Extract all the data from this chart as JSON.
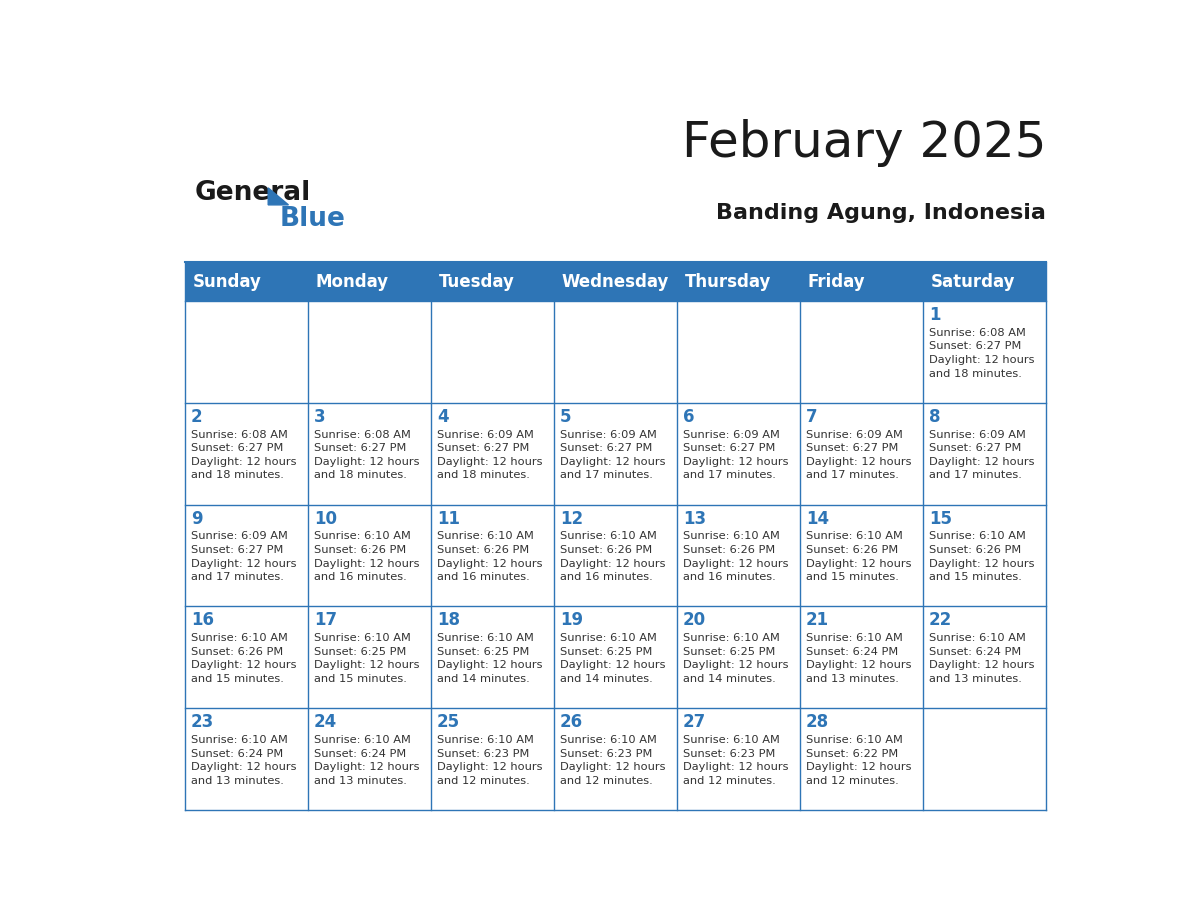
{
  "title": "February 2025",
  "subtitle": "Banding Agung, Indonesia",
  "header_bg": "#2E75B6",
  "header_text_color": "#FFFFFF",
  "cell_bg": "#FFFFFF",
  "border_color": "#2E75B6",
  "day_headers": [
    "Sunday",
    "Monday",
    "Tuesday",
    "Wednesday",
    "Thursday",
    "Friday",
    "Saturday"
  ],
  "title_color": "#1a1a1a",
  "subtitle_color": "#1a1a1a",
  "day_number_color": "#2E75B6",
  "cell_text_color": "#333333",
  "logo_text_general": "General",
  "logo_text_blue": "Blue",
  "logo_color_general": "#1a1a1a",
  "logo_color_blue": "#2E75B6",
  "weeks": [
    [
      {
        "day": null,
        "text": ""
      },
      {
        "day": null,
        "text": ""
      },
      {
        "day": null,
        "text": ""
      },
      {
        "day": null,
        "text": ""
      },
      {
        "day": null,
        "text": ""
      },
      {
        "day": null,
        "text": ""
      },
      {
        "day": 1,
        "text": "Sunrise: 6:08 AM\nSunset: 6:27 PM\nDaylight: 12 hours\nand 18 minutes."
      }
    ],
    [
      {
        "day": 2,
        "text": "Sunrise: 6:08 AM\nSunset: 6:27 PM\nDaylight: 12 hours\nand 18 minutes."
      },
      {
        "day": 3,
        "text": "Sunrise: 6:08 AM\nSunset: 6:27 PM\nDaylight: 12 hours\nand 18 minutes."
      },
      {
        "day": 4,
        "text": "Sunrise: 6:09 AM\nSunset: 6:27 PM\nDaylight: 12 hours\nand 18 minutes."
      },
      {
        "day": 5,
        "text": "Sunrise: 6:09 AM\nSunset: 6:27 PM\nDaylight: 12 hours\nand 17 minutes."
      },
      {
        "day": 6,
        "text": "Sunrise: 6:09 AM\nSunset: 6:27 PM\nDaylight: 12 hours\nand 17 minutes."
      },
      {
        "day": 7,
        "text": "Sunrise: 6:09 AM\nSunset: 6:27 PM\nDaylight: 12 hours\nand 17 minutes."
      },
      {
        "day": 8,
        "text": "Sunrise: 6:09 AM\nSunset: 6:27 PM\nDaylight: 12 hours\nand 17 minutes."
      }
    ],
    [
      {
        "day": 9,
        "text": "Sunrise: 6:09 AM\nSunset: 6:27 PM\nDaylight: 12 hours\nand 17 minutes."
      },
      {
        "day": 10,
        "text": "Sunrise: 6:10 AM\nSunset: 6:26 PM\nDaylight: 12 hours\nand 16 minutes."
      },
      {
        "day": 11,
        "text": "Sunrise: 6:10 AM\nSunset: 6:26 PM\nDaylight: 12 hours\nand 16 minutes."
      },
      {
        "day": 12,
        "text": "Sunrise: 6:10 AM\nSunset: 6:26 PM\nDaylight: 12 hours\nand 16 minutes."
      },
      {
        "day": 13,
        "text": "Sunrise: 6:10 AM\nSunset: 6:26 PM\nDaylight: 12 hours\nand 16 minutes."
      },
      {
        "day": 14,
        "text": "Sunrise: 6:10 AM\nSunset: 6:26 PM\nDaylight: 12 hours\nand 15 minutes."
      },
      {
        "day": 15,
        "text": "Sunrise: 6:10 AM\nSunset: 6:26 PM\nDaylight: 12 hours\nand 15 minutes."
      }
    ],
    [
      {
        "day": 16,
        "text": "Sunrise: 6:10 AM\nSunset: 6:26 PM\nDaylight: 12 hours\nand 15 minutes."
      },
      {
        "day": 17,
        "text": "Sunrise: 6:10 AM\nSunset: 6:25 PM\nDaylight: 12 hours\nand 15 minutes."
      },
      {
        "day": 18,
        "text": "Sunrise: 6:10 AM\nSunset: 6:25 PM\nDaylight: 12 hours\nand 14 minutes."
      },
      {
        "day": 19,
        "text": "Sunrise: 6:10 AM\nSunset: 6:25 PM\nDaylight: 12 hours\nand 14 minutes."
      },
      {
        "day": 20,
        "text": "Sunrise: 6:10 AM\nSunset: 6:25 PM\nDaylight: 12 hours\nand 14 minutes."
      },
      {
        "day": 21,
        "text": "Sunrise: 6:10 AM\nSunset: 6:24 PM\nDaylight: 12 hours\nand 13 minutes."
      },
      {
        "day": 22,
        "text": "Sunrise: 6:10 AM\nSunset: 6:24 PM\nDaylight: 12 hours\nand 13 minutes."
      }
    ],
    [
      {
        "day": 23,
        "text": "Sunrise: 6:10 AM\nSunset: 6:24 PM\nDaylight: 12 hours\nand 13 minutes."
      },
      {
        "day": 24,
        "text": "Sunrise: 6:10 AM\nSunset: 6:24 PM\nDaylight: 12 hours\nand 13 minutes."
      },
      {
        "day": 25,
        "text": "Sunrise: 6:10 AM\nSunset: 6:23 PM\nDaylight: 12 hours\nand 12 minutes."
      },
      {
        "day": 26,
        "text": "Sunrise: 6:10 AM\nSunset: 6:23 PM\nDaylight: 12 hours\nand 12 minutes."
      },
      {
        "day": 27,
        "text": "Sunrise: 6:10 AM\nSunset: 6:23 PM\nDaylight: 12 hours\nand 12 minutes."
      },
      {
        "day": 28,
        "text": "Sunrise: 6:10 AM\nSunset: 6:22 PM\nDaylight: 12 hours\nand 12 minutes."
      },
      {
        "day": null,
        "text": ""
      }
    ]
  ]
}
